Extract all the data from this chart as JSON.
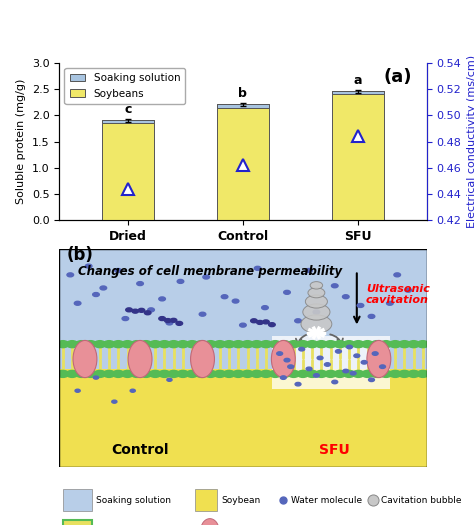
{
  "bar_categories": [
    "Dried",
    "Control",
    "SFU"
  ],
  "bar_values": [
    1.91,
    2.21,
    2.46
  ],
  "bar_errors": [
    0.03,
    0.03,
    0.03
  ],
  "bar_color_soybean": "#F0E868",
  "bar_color_soaking": "#A8C4E0",
  "bar_width": 0.45,
  "bar_letters": [
    "c",
    "b",
    "a"
  ],
  "ec_values": [
    0.444,
    0.462,
    0.484
  ],
  "ec_color": "#2222CC",
  "ylim_left": [
    0.0,
    3.0
  ],
  "ylim_right": [
    0.42,
    0.54
  ],
  "ylabel_left": "Soluble protein (mg/g)",
  "ylabel_right": "Electrical conductivity (ms/cm)",
  "panel_a_label": "(a)",
  "legend_soaking": "Soaking solution",
  "legend_soybean": "Soybeans",
  "bg_top_color": "#B8CEE8",
  "bg_bottom_color": "#F0E050",
  "panel_b_label": "(b)",
  "title_b": "Changes of cell membrane permeability",
  "label_control": "Control",
  "label_sfu": "SFU",
  "label_ultrasonic": "Ultrasonic\ncavitation",
  "green_head_color": "#55BB55",
  "tail_color": "#E8E060",
  "aquaporin_color": "#E89098",
  "aquaporin_edge": "#C06878",
  "water_dot_color": "#5566BB",
  "glycolipid_color": "#333388",
  "bubble_face": "#C8C8C8",
  "bubble_edge": "#888888",
  "membrane_white_region": true,
  "legend_soaksol_color": "#B8CEE8",
  "legend_soybean_color": "#F0E050",
  "legend_phospho_top": "#E8E060",
  "legend_phospho_green": "#55BB55"
}
